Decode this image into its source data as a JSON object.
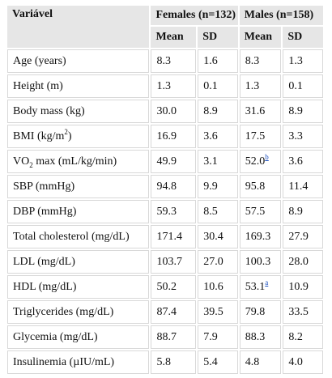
{
  "header": {
    "variable": "Variável",
    "group_female": "Females (n=132)",
    "group_male": "Males (n=158)",
    "mean": "Mean",
    "sd": "SD"
  },
  "rows": [
    {
      "label": "Age (years)",
      "f_mean": "8.3",
      "f_sd": "1.6",
      "m_mean": "8.3",
      "m_sd": "1.3"
    },
    {
      "label": "Height (m)",
      "f_mean": "1.3",
      "f_sd": "0.1",
      "m_mean": "1.3",
      "m_sd": "0.1"
    },
    {
      "label": "Body mass (kg)",
      "f_mean": "30.0",
      "f_sd": "8.9",
      "m_mean": "31.6",
      "m_sd": "8.9"
    },
    {
      "label_pre": "BMI (kg/m",
      "label_sup": "2",
      "label_post": ")",
      "f_mean": "16.9",
      "f_sd": "3.6",
      "m_mean": "17.5",
      "m_sd": "3.3"
    },
    {
      "label_pre": "VO",
      "label_sub": "2",
      "label_post": " max (mL/kg/min)",
      "f_mean": "49.9",
      "f_sd": "3.1",
      "m_mean": "52.0",
      "m_ref": "b",
      "m_sd": "3.6"
    },
    {
      "label": "SBP (mmHg)",
      "f_mean": "94.8",
      "f_sd": "9.9",
      "m_mean": "95.8",
      "m_sd": "11.4"
    },
    {
      "label": "DBP (mmHg)",
      "f_mean": "59.3",
      "f_sd": "8.5",
      "m_mean": "57.5",
      "m_sd": "8.9"
    },
    {
      "label": "Total cholesterol (mg/dL)",
      "f_mean": "171.4",
      "f_sd": "30.4",
      "m_mean": "169.3",
      "m_sd": "27.9"
    },
    {
      "label": "LDL (mg/dL)",
      "f_mean": "103.7",
      "f_sd": "27.0",
      "m_mean": "100.3",
      "m_sd": "28.0"
    },
    {
      "label": "HDL (mg/dL)",
      "f_mean": "50.2",
      "f_sd": "10.6",
      "m_mean": "53.1",
      "m_ref": "a",
      "m_sd": "10.9"
    },
    {
      "label": "Triglycerides (mg/dL)",
      "f_mean": "87.4",
      "f_sd": "39.5",
      "m_mean": "79.8",
      "m_sd": "33.5"
    },
    {
      "label": "Glycemia (mg/dL)",
      "f_mean": "88.7",
      "f_sd": "7.9",
      "m_mean": "88.3",
      "m_sd": "8.2"
    },
    {
      "label": "Insulinemia (µIU/mL)",
      "f_mean": "5.8",
      "f_sd": "5.4",
      "m_mean": "4.8",
      "m_sd": "4.0"
    }
  ]
}
